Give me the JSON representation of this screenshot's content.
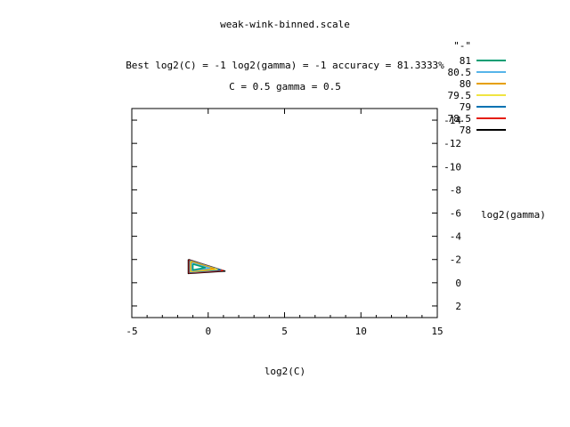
{
  "chart_data": {
    "type": "contour",
    "title": "weak-wink-binned.scale",
    "subtitle_lines": [
      "Best log2(C) = -1  log2(gamma) = -1  accuracy = 81.3333%",
      "C = 0.5  gamma = 0.5"
    ],
    "xlabel": "log2(C)",
    "ylabel": "log2(gamma)",
    "xlim": [
      -5,
      15
    ],
    "ylim": [
      3,
      -15
    ],
    "x_ticks": [
      -5,
      0,
      5,
      10,
      15
    ],
    "x_tick_labels": [
      "-5",
      "0",
      "5",
      "10",
      "15"
    ],
    "y_ticks": [
      -14,
      -12,
      -10,
      -8,
      -6,
      -4,
      -2,
      0,
      2
    ],
    "y_tick_labels": [
      "-14",
      "-12",
      "-10",
      "-8",
      "-6",
      "-4",
      "-2",
      "0",
      "2"
    ],
    "legend_title": "\"-\"",
    "legend_position": "top-right outside",
    "grid": false,
    "series": [
      {
        "name": "81",
        "color": "#009e73",
        "points": [
          [
            -1.0,
            -1.6
          ],
          [
            -0.2,
            -1.3
          ],
          [
            -1.0,
            -1.1
          ],
          [
            -1.0,
            -1.6
          ]
        ]
      },
      {
        "name": "80.5",
        "color": "#56b4e9",
        "points": [
          [
            -1.05,
            -1.7
          ],
          [
            0.1,
            -1.25
          ],
          [
            -1.05,
            -1.05
          ],
          [
            -1.05,
            -1.7
          ]
        ]
      },
      {
        "name": "80",
        "color": "#e69f00",
        "points": [
          [
            -1.1,
            -1.8
          ],
          [
            0.4,
            -1.2
          ],
          [
            -1.1,
            -1.0
          ],
          [
            -1.1,
            -1.8
          ]
        ]
      },
      {
        "name": "79.5",
        "color": "#f0e442",
        "points": [
          [
            -1.15,
            -1.85
          ],
          [
            0.6,
            -1.15
          ],
          [
            -1.15,
            -0.95
          ],
          [
            -1.15,
            -1.85
          ]
        ]
      },
      {
        "name": "79",
        "color": "#0072b2",
        "points": [
          [
            -1.2,
            -1.9
          ],
          [
            0.8,
            -1.1
          ],
          [
            -1.2,
            -0.9
          ],
          [
            -1.2,
            -1.9
          ]
        ]
      },
      {
        "name": "78.5",
        "color": "#e51e10",
        "points": [
          [
            -1.25,
            -1.95
          ],
          [
            0.95,
            -1.05
          ],
          [
            -1.25,
            -0.85
          ],
          [
            -1.25,
            -1.95
          ]
        ]
      },
      {
        "name": "78",
        "color": "#000000",
        "points": [
          [
            -1.3,
            -2.0
          ],
          [
            1.1,
            -1.0
          ],
          [
            -1.3,
            -0.8
          ],
          [
            -1.3,
            -2.0
          ]
        ]
      }
    ]
  }
}
